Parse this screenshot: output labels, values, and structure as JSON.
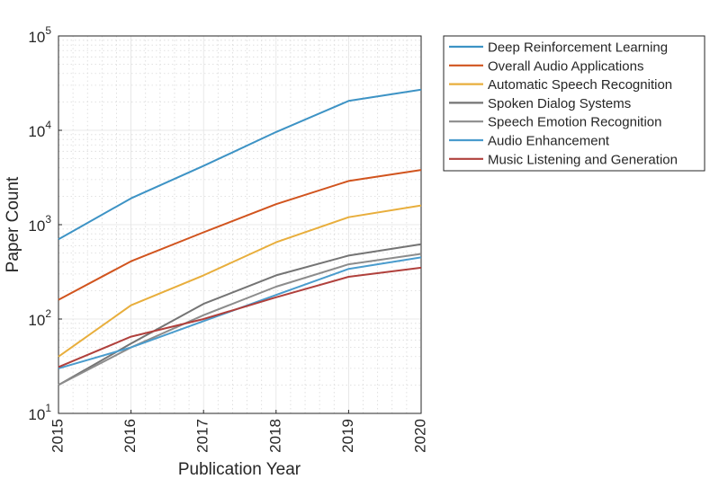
{
  "chart_data": {
    "type": "line",
    "xlabel": "Publication Year",
    "ylabel": "Paper Count",
    "x": [
      2015,
      2016,
      2017,
      2018,
      2019,
      2020
    ],
    "xticks": [
      "2015",
      "2016",
      "2017",
      "2018",
      "2019",
      "2020"
    ],
    "yscale": "log",
    "ylim": [
      10,
      100000
    ],
    "yticks": [
      {
        "value": 10,
        "base": "10",
        "exp": "1"
      },
      {
        "value": 100,
        "base": "10",
        "exp": "2"
      },
      {
        "value": 1000,
        "base": "10",
        "exp": "3"
      },
      {
        "value": 10000,
        "base": "10",
        "exp": "4"
      },
      {
        "value": 100000,
        "base": "10",
        "exp": "5"
      }
    ],
    "grid": true,
    "legend_position": "outside-right-top",
    "series": [
      {
        "name": "Deep Reinforcement Learning",
        "color": "#3d93c5",
        "values": [
          700,
          1900,
          4200,
          9600,
          20500,
          27000
        ]
      },
      {
        "name": "Overall Audio Applications",
        "color": "#d1541e",
        "values": [
          160,
          410,
          830,
          1650,
          2900,
          3800
        ]
      },
      {
        "name": "Automatic Speech Recognition",
        "color": "#e8ae3c",
        "values": [
          40,
          140,
          290,
          650,
          1200,
          1600
        ]
      },
      {
        "name": "Spoken Dialog Systems",
        "color": "#747474",
        "values": [
          20,
          55,
          145,
          290,
          470,
          620
        ]
      },
      {
        "name": "Speech Emotion Recognition",
        "color": "#8c8c8c",
        "values": [
          20,
          50,
          110,
          220,
          380,
          490
        ]
      },
      {
        "name": "Audio Enhancement",
        "color": "#4a9ccd",
        "values": [
          30,
          50,
          95,
          180,
          340,
          450
        ]
      },
      {
        "name": "Music Listening and Generation",
        "color": "#b0403c",
        "values": [
          31,
          65,
          100,
          170,
          280,
          350
        ]
      }
    ]
  }
}
